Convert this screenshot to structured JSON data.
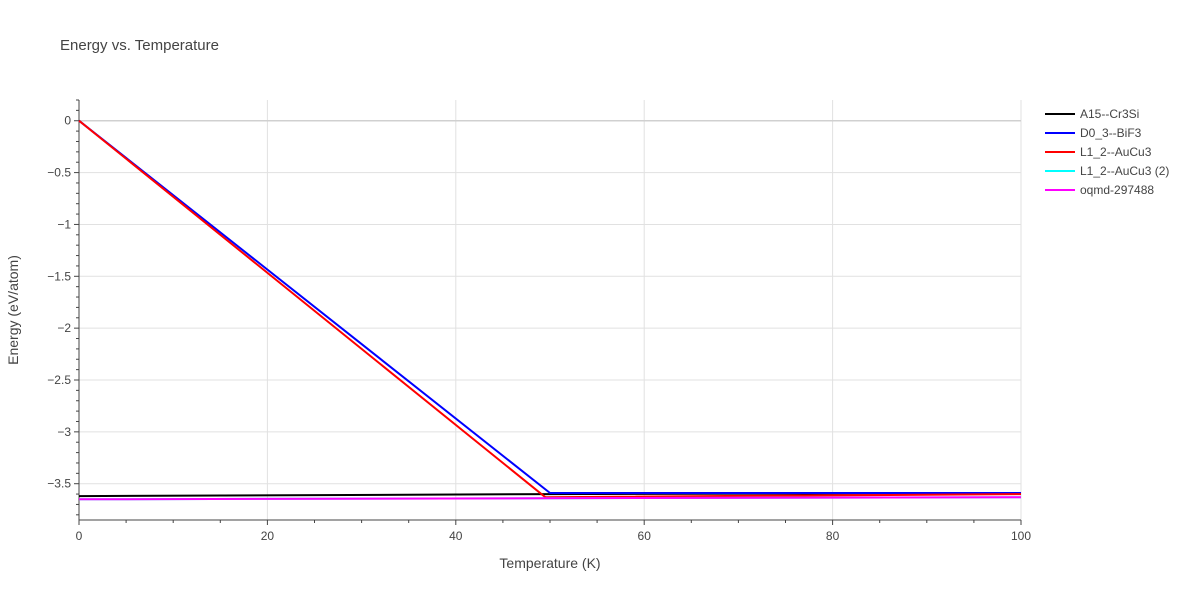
{
  "chart_data": {
    "type": "line",
    "title": "Energy vs. Temperature",
    "xlabel": "Temperature (K)",
    "ylabel": "Energy (eV/atom)",
    "xlim": [
      0,
      100
    ],
    "ylim": [
      -3.85,
      0.2
    ],
    "x_ticks": [
      0,
      20,
      40,
      60,
      80,
      100
    ],
    "x_tick_labels": [
      "0",
      "20",
      "40",
      "60",
      "80",
      "100"
    ],
    "y_ticks": [
      0,
      -0.5,
      -1,
      -1.5,
      -2,
      -2.5,
      -3,
      -3.5
    ],
    "y_tick_labels": [
      "0",
      "−0.5",
      "−1",
      "−1.5",
      "−2",
      "−2.5",
      "−3",
      "−3.5"
    ],
    "grid": true,
    "legend_position": "right",
    "series": [
      {
        "name": "A15--Cr3Si",
        "color": "#000000",
        "x": [
          0,
          50,
          100
        ],
        "y": [
          -3.62,
          -3.6,
          -3.59
        ]
      },
      {
        "name": "D0_3--BiF3",
        "color": "#0000ff",
        "x": [
          0,
          50,
          100
        ],
        "y": [
          0,
          -3.59,
          -3.59
        ]
      },
      {
        "name": "L1_2--AuCu3",
        "color": "#ff0000",
        "x": [
          0,
          49.5,
          100
        ],
        "y": [
          0,
          -3.63,
          -3.6
        ]
      },
      {
        "name": "L1_2--AuCu3 (2)",
        "color": "#00ffff",
        "x": [
          0,
          100
        ],
        "y": [
          -3.65,
          -3.63
        ]
      },
      {
        "name": "oqmd-297488",
        "color": "#ff00ff",
        "x": [
          0,
          100
        ],
        "y": [
          -3.65,
          -3.63
        ]
      }
    ]
  }
}
